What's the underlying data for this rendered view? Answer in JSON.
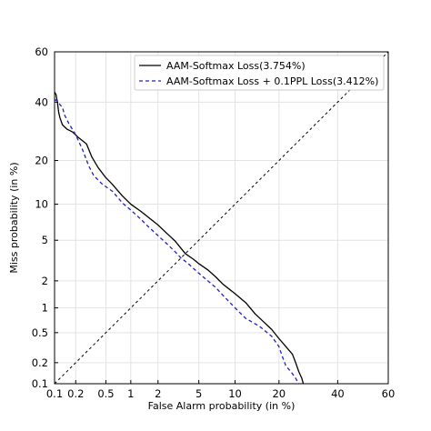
{
  "chart_data": {
    "type": "line",
    "title": "",
    "xlabel": "False Alarm probability (in %)",
    "ylabel": "Miss probability (in %)",
    "scale": "probit (normal deviate)",
    "xlim": [
      0.1,
      60
    ],
    "ylim": [
      0.1,
      60
    ],
    "x_ticks": [
      0.1,
      0.2,
      0.5,
      1,
      2,
      5,
      10,
      20,
      40,
      60
    ],
    "y_ticks": [
      0.1,
      0.2,
      0.5,
      1,
      2,
      5,
      10,
      20,
      40,
      60
    ],
    "x_tick_labels": [
      "0.1",
      "0.2",
      "0.5",
      "1",
      "2",
      "5",
      "10",
      "20",
      "40",
      "60"
    ],
    "y_tick_labels": [
      "0.1",
      "0.2",
      "0.5",
      "1",
      "2",
      "5",
      "10",
      "20",
      "40",
      "60"
    ],
    "grid": true,
    "legend_position": "top-right",
    "legend": [
      "AAM-Softmax Loss(3.754%)",
      "AAM-Softmax Loss + 0.1PPL Loss(3.412%)"
    ],
    "series": [
      {
        "name": "AAM-Softmax Loss(3.754%)",
        "color": "#000000",
        "style": "solid",
        "points": [
          [
            0.1,
            44
          ],
          [
            0.105,
            43
          ],
          [
            0.11,
            40
          ],
          [
            0.115,
            36
          ],
          [
            0.12,
            34
          ],
          [
            0.13,
            31.5
          ],
          [
            0.15,
            30
          ],
          [
            0.18,
            29
          ],
          [
            0.22,
            27
          ],
          [
            0.28,
            25
          ],
          [
            0.33,
            21
          ],
          [
            0.4,
            18
          ],
          [
            0.5,
            15.5
          ],
          [
            0.6,
            14
          ],
          [
            0.8,
            11.5
          ],
          [
            1.0,
            10
          ],
          [
            1.3,
            8.8
          ],
          [
            1.6,
            7.8
          ],
          [
            2.0,
            6.8
          ],
          [
            2.5,
            5.7
          ],
          [
            3.0,
            4.9
          ],
          [
            3.754,
            3.754
          ],
          [
            4.5,
            3.3
          ],
          [
            5.0,
            3.0
          ],
          [
            6.0,
            2.6
          ],
          [
            7.0,
            2.2
          ],
          [
            8.0,
            1.85
          ],
          [
            10.0,
            1.45
          ],
          [
            12.0,
            1.15
          ],
          [
            14.0,
            0.85
          ],
          [
            16.0,
            0.68
          ],
          [
            18.0,
            0.55
          ],
          [
            20.0,
            0.42
          ],
          [
            22.0,
            0.33
          ],
          [
            24.0,
            0.26
          ],
          [
            25.0,
            0.2
          ],
          [
            26.0,
            0.15
          ],
          [
            27.0,
            0.12
          ],
          [
            27.5,
            0.1
          ]
        ]
      },
      {
        "name": "AAM-Softmax Loss + 0.1PPL Loss(3.412%)",
        "color": "#1f1fbf",
        "style": "dashed",
        "points": [
          [
            0.1,
            41
          ],
          [
            0.11,
            40.5
          ],
          [
            0.12,
            39
          ],
          [
            0.13,
            38
          ],
          [
            0.14,
            35
          ],
          [
            0.16,
            32
          ],
          [
            0.2,
            28
          ],
          [
            0.25,
            23
          ],
          [
            0.3,
            18.5
          ],
          [
            0.35,
            16
          ],
          [
            0.45,
            14
          ],
          [
            0.6,
            12.5
          ],
          [
            0.8,
            10.2
          ],
          [
            1.0,
            9
          ],
          [
            1.3,
            7.6
          ],
          [
            1.6,
            6.5
          ],
          [
            2.0,
            5.5
          ],
          [
            2.5,
            4.6
          ],
          [
            3.0,
            3.9
          ],
          [
            3.412,
            3.412
          ],
          [
            4.0,
            3.0
          ],
          [
            5.0,
            2.4
          ],
          [
            6.0,
            2.0
          ],
          [
            7.0,
            1.7
          ],
          [
            8.0,
            1.4
          ],
          [
            10.0,
            1.0
          ],
          [
            12.0,
            0.75
          ],
          [
            15.0,
            0.6
          ],
          [
            18.0,
            0.45
          ],
          [
            20.0,
            0.33
          ],
          [
            21.0,
            0.24
          ],
          [
            22.0,
            0.18
          ],
          [
            23.5,
            0.15
          ],
          [
            25.0,
            0.12
          ],
          [
            26.0,
            0.1
          ]
        ]
      },
      {
        "name": "",
        "color": "#000000",
        "style": "dotted-diagonal",
        "points": [
          [
            0.1,
            0.1
          ],
          [
            60,
            60
          ]
        ]
      }
    ]
  }
}
